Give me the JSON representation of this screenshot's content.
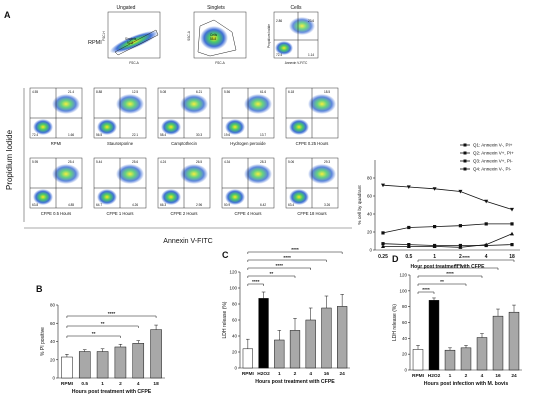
{
  "panel_letters": [
    "A",
    "B",
    "C",
    "D"
  ],
  "top_row": {
    "rpmi_label": "RPMI",
    "ungated": {
      "title": "Ungated",
      "x_label": "FSC-A",
      "y_label": "FSC-H",
      "gate_label": "Singlets",
      "gate_value": "92.8"
    },
    "singlets": {
      "title": "Singlets",
      "x_label": "FSC-A",
      "y_label": "SSC-A",
      "gate_label": "Cells",
      "gate_value": "58.8"
    },
    "cells": {
      "title": "Cells",
      "x_label": "Annexin V-FITC",
      "y_label": "Propidium Iodide",
      "q1": "2.86",
      "q2": "23.6",
      "q4": "72.4",
      "q3": "1.14"
    }
  },
  "grid": {
    "y_axis_title": "Propidium Iodide",
    "x_axis_title": "Annexin  V-FITC",
    "rows": [
      [
        {
          "label": "RPMI",
          "q1": "4.55",
          "q2": "21.4",
          "q4": "72.4",
          "q3": "1.66"
        },
        {
          "label": "Staurosporine",
          "q1": "8.88",
          "q2": "12.5",
          "q4": "56.5",
          "q3": "22.1"
        },
        {
          "label": "Camptothecin",
          "q1": "5.08",
          "q2": "6.21",
          "q4": "58.4",
          "q3": "30.3"
        },
        {
          "label": "Hydrogen peroxide",
          "q1": "5.56",
          "q2": "61.6",
          "q4": "19.6",
          "q3": "13.7"
        },
        {
          "label": "CFPE 0.25 Hours",
          "q1": "6.18",
          "q2": "18.5",
          "q4": "",
          "q3": ""
        }
      ],
      [
        {
          "label": "CFPE 0.5 Hours",
          "q1": "5.95",
          "q2": "25.4",
          "q4": "63.8",
          "q3": "4.85"
        },
        {
          "label": "CFPE 1 Hours",
          "q1": "5.44",
          "q2": "25.6",
          "q4": "64.7",
          "q3": "4.26"
        },
        {
          "label": "CFPE 2 Hours",
          "q1": "4.24",
          "q2": "26.5",
          "q4": "66.3",
          "q3": "2.96"
        },
        {
          "label": "CFPE 4 Hours",
          "q1": "4.34",
          "q2": "28.3",
          "q4": "50.9",
          "q3": "6.42"
        },
        {
          "label": "CFPE 18 Hours",
          "q1": "5.06",
          "q2": "29.3",
          "q4": "63.4",
          "q3": "3.26"
        }
      ]
    ]
  },
  "chart_data": [
    {
      "type": "line",
      "xlabel": "Hour post treatment  with CFPE",
      "ylabel": "% cell by quadrant",
      "categories": [
        "0.25",
        "0.5",
        "1",
        "2",
        "4",
        "18"
      ],
      "ylim": [
        0,
        100
      ],
      "yticks": [
        "0",
        "20",
        "40",
        "60",
        "80"
      ],
      "legend_position": "top-right",
      "series": [
        {
          "name": "Q1: Annexin V-, PI+",
          "values": [
            7,
            6,
            5,
            5,
            5,
            6
          ],
          "color": "#111111"
        },
        {
          "name": "Q2: Annexin V+, PI+",
          "values": [
            19,
            25,
            26,
            27,
            29,
            29
          ],
          "color": "#111111"
        },
        {
          "name": "Q3: Annexin V+, PI-",
          "values": [
            4,
            4,
            4,
            3,
            6,
            18
          ],
          "color": "#111111"
        },
        {
          "name": "Q4: Annexin V-, PI-",
          "values": [
            72,
            70,
            68,
            65,
            54,
            45
          ],
          "color": "#111111"
        }
      ]
    },
    {
      "type": "bar",
      "ylabel": "% PI positive",
      "xlabel": "Hours post treatment with CFPE",
      "categories": [
        "RPMI",
        "0.5",
        "1",
        "2",
        "4",
        "18"
      ],
      "values": [
        23,
        29,
        29,
        34,
        38,
        53
      ],
      "errors": [
        3,
        2,
        3,
        3,
        3,
        5
      ],
      "bar_colors": [
        "#ffffff",
        "#a8a8a8",
        "#a8a8a8",
        "#a8a8a8",
        "#a8a8a8",
        "#a8a8a8"
      ],
      "ylim": [
        0,
        80
      ],
      "yticks": [
        "0",
        "20",
        "40",
        "60",
        "80"
      ],
      "significance": [
        {
          "from": 0,
          "to": 5,
          "label": "****"
        },
        {
          "from": 0,
          "to": 4,
          "label": "**"
        },
        {
          "from": 0,
          "to": 3,
          "label": "**"
        }
      ]
    },
    {
      "type": "bar",
      "ylabel": "LDH release (%)",
      "xlabel": "Hours post treatment with CFPE",
      "categories": [
        "RPMI",
        "H2O2",
        "1",
        "2",
        "4",
        "16",
        "24"
      ],
      "values": [
        24,
        87,
        35,
        47,
        60,
        75,
        77
      ],
      "errors": [
        12,
        8,
        12,
        15,
        15,
        15,
        15
      ],
      "bar_colors": [
        "#ffffff",
        "#000000",
        "#a8a8a8",
        "#a8a8a8",
        "#a8a8a8",
        "#a8a8a8",
        "#a8a8a8"
      ],
      "ylim": [
        0,
        120
      ],
      "yticks": [
        "0",
        "20",
        "40",
        "60",
        "80",
        "100",
        "120"
      ],
      "significance": [
        {
          "from": 0,
          "to": 6,
          "label": "****"
        },
        {
          "from": 0,
          "to": 5,
          "label": "****"
        },
        {
          "from": 0,
          "to": 4,
          "label": "****"
        },
        {
          "from": 0,
          "to": 3,
          "label": "**"
        },
        {
          "from": 0,
          "to": 1,
          "label": "****"
        }
      ]
    },
    {
      "type": "bar",
      "ylabel": "LDH release (%)",
      "xlabel": "Hours post infection with M. bovis",
      "categories": [
        "RPMI",
        "H2O2",
        "1",
        "2",
        "4",
        "16",
        "24"
      ],
      "values": [
        26,
        88,
        25,
        28,
        41,
        68,
        73
      ],
      "errors": [
        5,
        3,
        3,
        3,
        5,
        9,
        9
      ],
      "bar_colors": [
        "#ffffff",
        "#000000",
        "#a8a8a8",
        "#a8a8a8",
        "#a8a8a8",
        "#a8a8a8",
        "#a8a8a8"
      ],
      "ylim": [
        0,
        120
      ],
      "yticks": [
        "0",
        "20",
        "40",
        "60",
        "80",
        "100",
        "120"
      ],
      "significance": [
        {
          "from": 0,
          "to": 6,
          "label": "****"
        },
        {
          "from": 0,
          "to": 5,
          "label": "****"
        },
        {
          "from": 0,
          "to": 4,
          "label": "****"
        },
        {
          "from": 0,
          "to": 3,
          "label": "**"
        },
        {
          "from": 0,
          "to": 1,
          "label": "****"
        }
      ]
    }
  ]
}
